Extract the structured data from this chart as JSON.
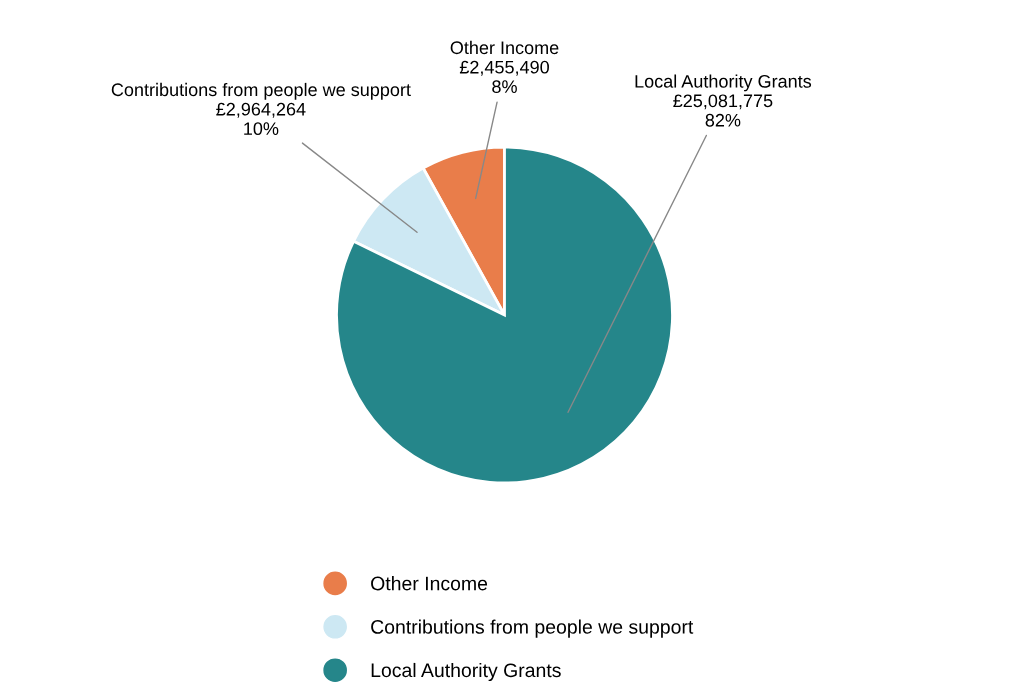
{
  "chart_data": {
    "type": "pie",
    "categories": [
      "Other Income",
      "Contributions from people we support",
      "Local Authority Grants"
    ],
    "values": [
      2455490,
      2964264,
      25081775
    ],
    "value_labels": [
      "£2,455,490\n8%",
      "£2,964,264\n10%",
      "£25,081,775\n82%"
    ],
    "colors": [
      "#e97d4a",
      "#cde8f3",
      "#25868a"
    ],
    "legend": "bottom"
  }
}
